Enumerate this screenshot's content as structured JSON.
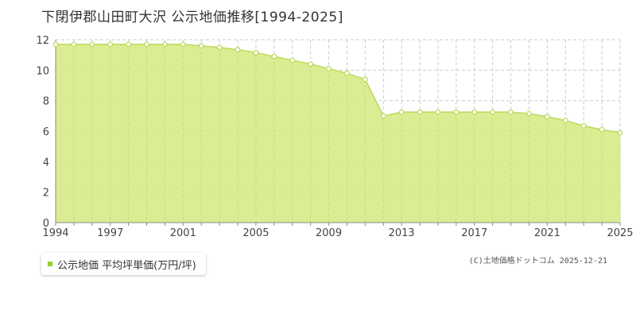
{
  "chart_data": {
    "type": "area",
    "title": "下閉伊郡山田町大沢 公示地価推移[1994-2025]",
    "xlabel": "",
    "ylabel": "",
    "x": [
      1994,
      1995,
      1996,
      1997,
      1998,
      1999,
      2000,
      2001,
      2002,
      2003,
      2004,
      2005,
      2006,
      2007,
      2008,
      2009,
      2010,
      2011,
      2012,
      2013,
      2014,
      2015,
      2016,
      2017,
      2018,
      2019,
      2020,
      2021,
      2022,
      2023,
      2024,
      2025
    ],
    "series": [
      {
        "name": "公示地価 平均坪単価(万円/坪)",
        "values": [
          11.7,
          11.7,
          11.7,
          11.7,
          11.7,
          11.7,
          11.7,
          11.7,
          11.6,
          11.5,
          11.35,
          11.15,
          10.9,
          10.65,
          10.4,
          10.1,
          9.8,
          9.4,
          7.0,
          7.25,
          7.25,
          7.25,
          7.25,
          7.25,
          7.25,
          7.25,
          7.15,
          6.95,
          6.7,
          6.35,
          6.1,
          5.9
        ]
      }
    ],
    "ylim": [
      0,
      12
    ],
    "yticks": [
      0,
      2,
      4,
      6,
      8,
      10,
      12
    ],
    "xlim": [
      1994,
      2025
    ],
    "xticks": [
      1994,
      1997,
      2001,
      2005,
      2009,
      2013,
      2017,
      2021,
      2025
    ],
    "grid": true,
    "legend_position": "bottom-left",
    "colors": {
      "fill": "#d9ec8c",
      "line": "#bcd95a",
      "marker_fill": "#ffffff",
      "grid": "#cccccc",
      "axis": "#888888",
      "swatch": "#9acd32"
    }
  },
  "legend": {
    "label": "公示地価 平均坪単価(万円/坪)"
  },
  "copyright": "(C)土地価格ドットコム 2025-12-21"
}
